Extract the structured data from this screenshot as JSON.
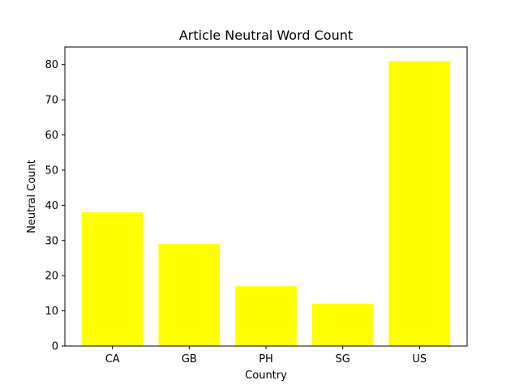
{
  "chart_data": {
    "type": "bar",
    "title": "Article Neutral Word Count",
    "xlabel": "Country",
    "ylabel": "Neutral Count",
    "categories": [
      "CA",
      "GB",
      "PH",
      "SG",
      "US"
    ],
    "values": [
      38,
      29,
      17,
      12,
      81
    ],
    "ylim": [
      0,
      85
    ],
    "yticks": [
      0,
      10,
      20,
      30,
      40,
      50,
      60,
      70,
      80
    ],
    "bar_color": "#ffff00",
    "grid": false,
    "legend": false
  }
}
